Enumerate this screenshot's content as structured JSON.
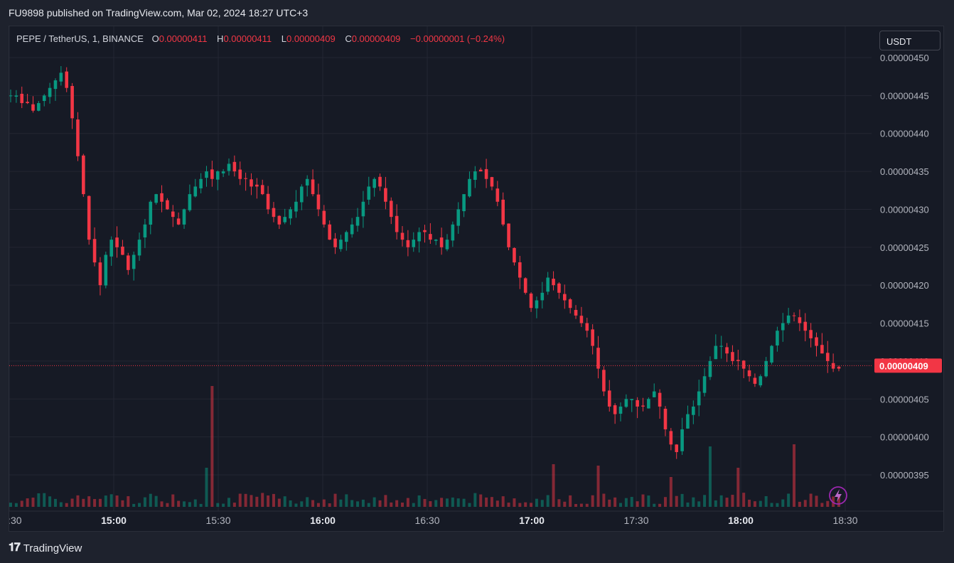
{
  "header": {
    "publish_text": "FU9898 published on TradingView.com, Mar 02, 2024 18:27 UTC+3"
  },
  "legend": {
    "symbol": "PEPE / TetherUS, 1, BINANCE",
    "open_label": "O",
    "open": "0.00000411",
    "high_label": "H",
    "high": "0.00000411",
    "low_label": "L",
    "low": "0.00000409",
    "close_label": "C",
    "close": "0.00000409",
    "change": "−0.00000001 (−0.24%)"
  },
  "currency_button": "USDT",
  "footer": {
    "brand": "TradingView",
    "logo_icon": "tv-logo-icon"
  },
  "colors": {
    "up": "#089981",
    "down": "#f23645",
    "background": "#161a25",
    "grid": "#232632",
    "text": "#b2b5be"
  },
  "chart_data": {
    "type": "candlestick",
    "symbol": "PEPE / TetherUS",
    "interval": "1",
    "exchange": "BINANCE",
    "ylim": [
      3.91e-06,
      4.5e-06
    ],
    "y_ticks": [
      "0.00000450",
      "0.00000445",
      "0.00000440",
      "0.00000435",
      "0.00000430",
      "0.00000425",
      "0.00000420",
      "0.00000415",
      "0.00000410",
      "0.00000405",
      "0.00000400",
      "0.00000395"
    ],
    "x_ticks": [
      "14:30",
      "15:00",
      "15:30",
      "16:00",
      "16:30",
      "17:00",
      "17:30",
      "18:00",
      "18:30"
    ],
    "x_tick_bold": [
      false,
      true,
      false,
      true,
      false,
      true,
      false,
      true,
      false
    ],
    "last_price": "0.00000409",
    "series": [
      {
        "name": "price_path",
        "close": [
          445,
          445,
          444,
          444,
          443,
          444,
          445,
          446,
          447,
          448,
          446,
          442,
          437,
          432,
          426,
          423,
          420,
          424,
          426,
          425,
          424,
          422,
          424,
          426,
          428,
          431,
          432,
          431,
          430,
          429,
          428,
          430,
          432,
          433,
          434,
          435,
          434,
          435,
          435,
          436,
          435,
          434,
          434,
          433,
          433,
          432,
          430,
          429,
          428,
          429,
          430,
          431,
          433,
          434,
          432,
          430,
          428,
          426,
          425,
          426,
          427,
          428,
          429,
          431,
          433,
          434,
          433,
          431,
          429,
          427,
          426,
          425,
          426,
          427,
          427,
          426,
          426,
          425,
          426,
          428,
          430,
          432,
          434,
          435,
          435,
          434,
          433,
          431,
          428,
          425,
          423,
          421,
          419,
          417,
          418,
          419,
          421,
          420,
          419,
          418,
          417,
          416,
          415,
          414,
          412,
          409,
          406,
          404,
          403,
          404,
          405,
          405,
          404,
          404,
          405,
          406,
          404,
          401,
          399,
          398,
          401,
          403,
          404,
          406,
          408,
          410,
          412,
          412,
          411,
          410,
          410,
          409,
          408,
          407,
          408,
          410,
          412,
          414,
          415,
          416,
          416,
          415,
          414,
          413,
          412,
          411,
          410,
          409,
          409
        ]
      }
    ],
    "volume_note": "volume histogram (relative), last ~150 bars"
  }
}
